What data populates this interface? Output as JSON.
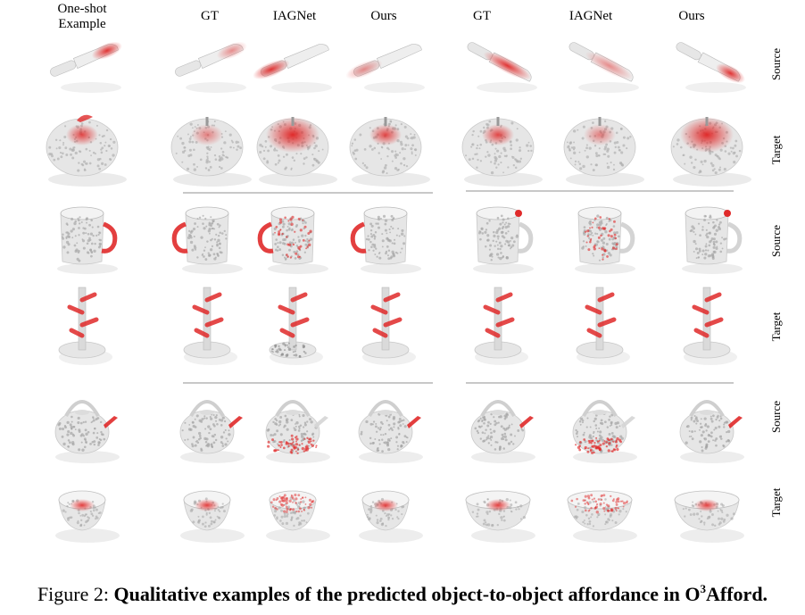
{
  "headers": {
    "one_shot": "One-shot Example",
    "gt_1": "GT",
    "iagnet_1": "IAGNet",
    "ours_1": "Ours",
    "gt_2": "GT",
    "iagnet_2": "IAGNet",
    "ours_2": "Ours"
  },
  "row_labels": [
    "Source",
    "Target",
    "Source",
    "Target",
    "Source",
    "Target"
  ],
  "caption": {
    "prefix": "Figure 2: ",
    "bold_text": "Qualitative examples of the predicted object-to-object affordance in O",
    "superscript": "3",
    "suffix": "Afford."
  },
  "rows": [
    {
      "object": "knife",
      "role": "Source",
      "highlight": [
        "tip",
        "tip-light",
        "handle-strong",
        "handle-light",
        "blade",
        "blade-light",
        "tip"
      ]
    },
    {
      "object": "apple",
      "role": "Target",
      "highlight": [
        "top",
        "top-light",
        "top-strong",
        "top",
        "top",
        "top-light",
        "top-strong"
      ]
    },
    {
      "object": "mug",
      "role": "Source",
      "highlight": [
        "handle",
        "handle",
        "handle-scatter",
        "handle",
        "rim",
        "scatter",
        "rim"
      ]
    },
    {
      "object": "mug-tree",
      "role": "Target",
      "highlight": [
        "branches",
        "branches",
        "branches",
        "branches",
        "branches",
        "branches",
        "branches"
      ]
    },
    {
      "object": "kettle",
      "role": "Source",
      "highlight": [
        "spout",
        "spout",
        "bottom",
        "spout",
        "spout",
        "bottom",
        "spout"
      ]
    },
    {
      "object": "bowl",
      "role": "Target",
      "highlight": [
        "center",
        "center",
        "scatter",
        "center",
        "center",
        "scatter",
        "center"
      ]
    }
  ],
  "colors": {
    "highlight": "#e02a2a",
    "object": "#e6e6e6",
    "separator": "#c8c8c8"
  }
}
